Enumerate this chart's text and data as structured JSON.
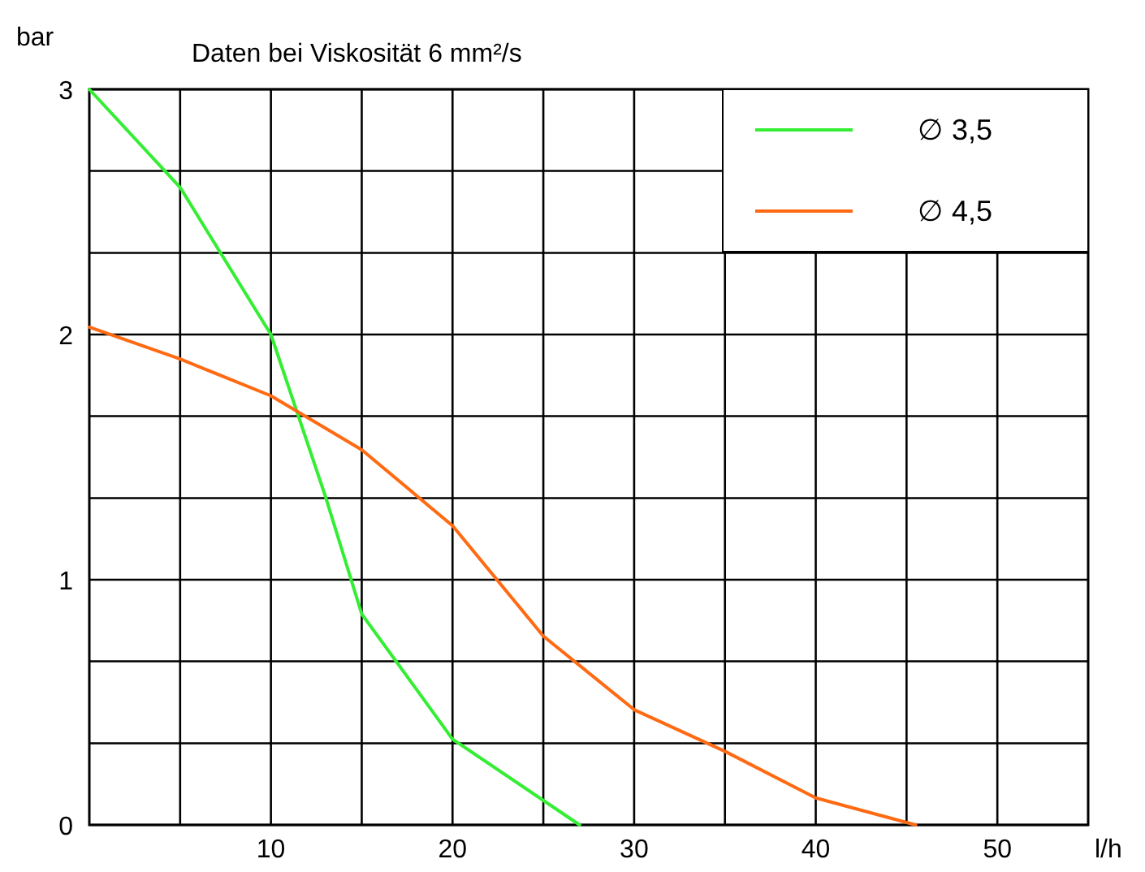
{
  "chart_data": {
    "type": "line",
    "title": "Daten bei Viskosität  6 mm²/s",
    "xlabel": "l/h",
    "ylabel": "bar",
    "xlim": [
      0,
      55
    ],
    "xticks": [
      {
        "value": 5,
        "label": null
      },
      10,
      {
        "value": 15,
        "label": null
      },
      20,
      {
        "value": 25,
        "label": null
      },
      30,
      {
        "value": 35,
        "label": null
      },
      40,
      {
        "value": 45,
        "label": null
      },
      50
    ],
    "ylim": [
      0,
      3
    ],
    "yticks": [
      0,
      {
        "value": 0.333,
        "label": null
      },
      {
        "value": 0.667,
        "label": null
      },
      1,
      {
        "value": 1.333,
        "label": null
      },
      {
        "value": 1.667,
        "label": null
      },
      2,
      {
        "value": 2.333,
        "label": null
      },
      {
        "value": 2.667,
        "label": null
      },
      3
    ],
    "grid": true,
    "legend": "top right",
    "marker": "none",
    "line_style": "solid",
    "series": [
      {
        "name": "∅ 3,5",
        "color": "#33ee33",
        "x": [
          0,
          5,
          10,
          13,
          15,
          20,
          27
        ],
        "values": [
          3,
          2.6,
          2,
          1.34,
          0.86,
          0.35,
          0
        ]
      },
      {
        "name": "∅ 4,5",
        "color": "#ff6a13",
        "x": [
          0,
          5,
          10,
          15,
          20,
          25,
          30,
          35,
          40,
          45.5
        ],
        "values": [
          2.03,
          1.9,
          1.75,
          1.53,
          1.22,
          0.77,
          0.47,
          0.3,
          0.11,
          0
        ]
      }
    ]
  }
}
